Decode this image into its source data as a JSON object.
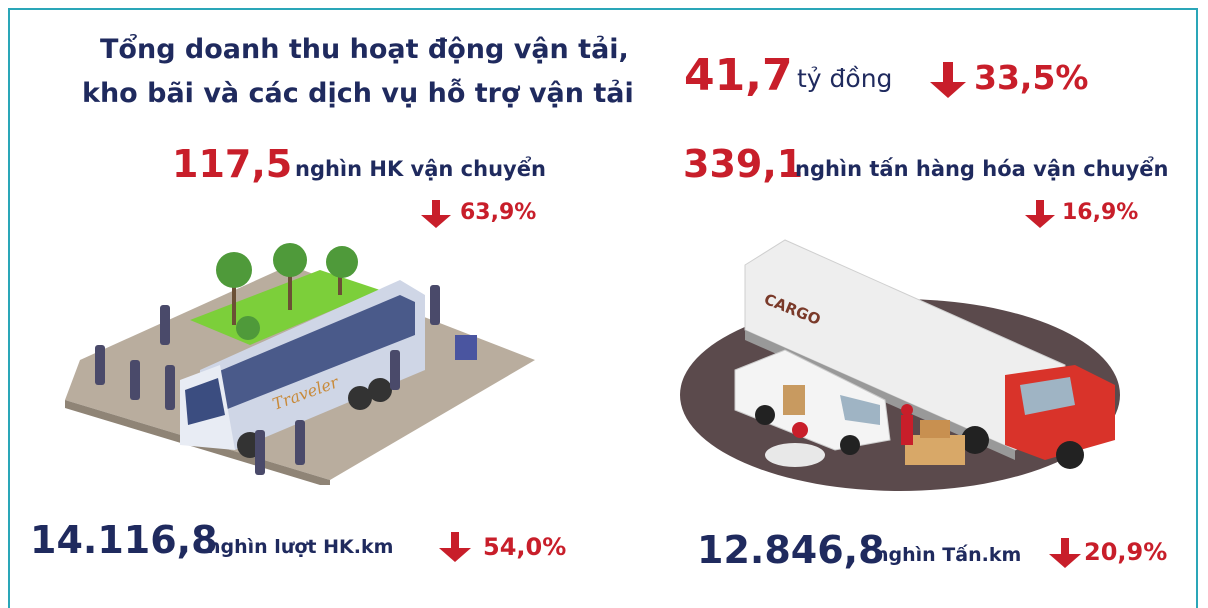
{
  "header": {
    "title_lines": [
      "Tổng doanh thu hoạt động vận tải,",
      "kho bãi và các dịch vụ hỗ trợ vận tải"
    ]
  },
  "revenue": {
    "value": "41,7",
    "unit": "tỷ đồng",
    "change": "33,5%"
  },
  "passengers": {
    "value": "117,5",
    "unit": "nghìn HK vận chuyển",
    "change": "63,9%"
  },
  "cargo": {
    "value": "339,1",
    "unit": "nghìn tấn hàng hóa vận chuyển",
    "change": "16,9%"
  },
  "passenger_km": {
    "value": "14.116,8",
    "unit": "nghìn lượt HK.km",
    "change": "54,0%"
  },
  "cargo_km": {
    "value": "12.846,8",
    "unit": "nghìn Tấn.km",
    "change": "20,9%"
  },
  "illustrations": {
    "bus_label": "Traveler",
    "truck_label": "CARGO"
  }
}
